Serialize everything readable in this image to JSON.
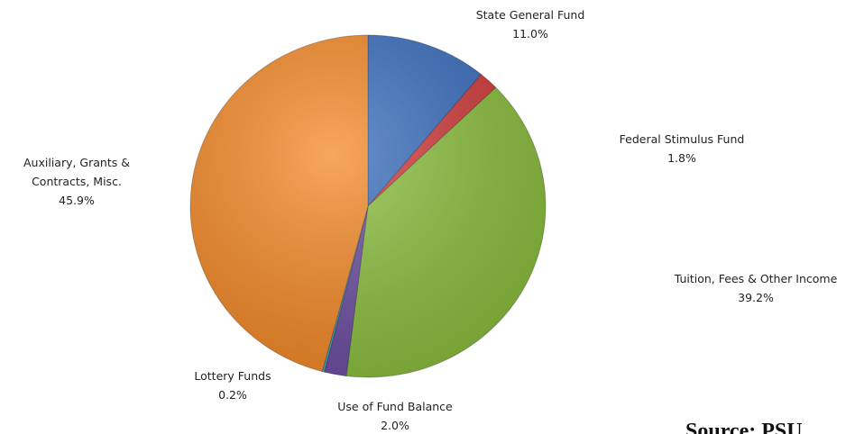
{
  "chart_data": {
    "type": "pie",
    "categories": [
      "State General Fund",
      "Federal Stimulus Fund",
      "Tuition, Fees & Other Income",
      "Use of Fund Balance",
      "Lottery Funds",
      "Auxiliary, Grants & Contracts, Misc."
    ],
    "values": [
      11.0,
      1.8,
      39.2,
      2.0,
      0.2,
      45.9
    ],
    "value_labels": [
      "11.0%",
      "1.8%",
      "39.2%",
      "2.0%",
      "0.2%",
      "45.9%"
    ],
    "colors": [
      "#3a6fbf",
      "#d33b3b",
      "#8cc03f",
      "#6d4fa3",
      "#3fa7c6",
      "#f58a28"
    ],
    "source": "Source: PSU"
  }
}
